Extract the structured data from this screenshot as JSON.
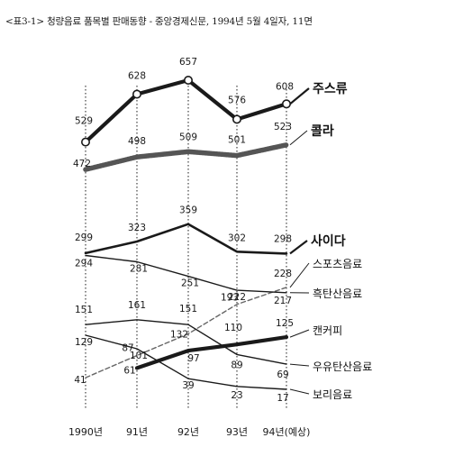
{
  "caption": "<표3-1> 청량음료 품목별 판매동향 - 중앙경제신문, 1994년 5월 4일자, 11면",
  "chart_data": {
    "type": "line",
    "x": [
      "1990년",
      "91년",
      "92년",
      "93년",
      "94년(예상)"
    ],
    "title": "",
    "xlabel": "",
    "ylabel": "",
    "grid": false,
    "legend_placement": "right of each line end",
    "series": [
      {
        "name": "주스류",
        "values": [
          529,
          628,
          657,
          576,
          608
        ],
        "color": "#1a1a1a",
        "style": "thick"
      },
      {
        "name": "콜라",
        "values": [
          472,
          498,
          509,
          501,
          523
        ],
        "color": "#555555",
        "style": "thick-grey"
      },
      {
        "name": "사이다",
        "values": [
          299,
          323,
          359,
          302,
          298
        ],
        "color": "#1a1a1a",
        "style": "medium"
      },
      {
        "name": "스포츠음료",
        "values": [
          41,
          87,
          132,
          193,
          228
        ],
        "color": "#666666",
        "style": "dashed"
      },
      {
        "name": "흑탄산음료",
        "values": [
          294,
          281,
          251,
          222,
          217
        ],
        "color": "#1a1a1a",
        "style": "thin"
      },
      {
        "name": "캔커피",
        "values": [
          null,
          61,
          97,
          110,
          125
        ],
        "color": "#1a1a1a",
        "style": "thick"
      },
      {
        "name": "우유탄산음료",
        "values": [
          151,
          161,
          151,
          89,
          69
        ],
        "color": "#1a1a1a",
        "style": "thin"
      },
      {
        "name": "보리음료",
        "values": [
          129,
          101,
          39,
          23,
          17
        ],
        "color": "#1a1a1a",
        "style": "thin"
      }
    ]
  }
}
